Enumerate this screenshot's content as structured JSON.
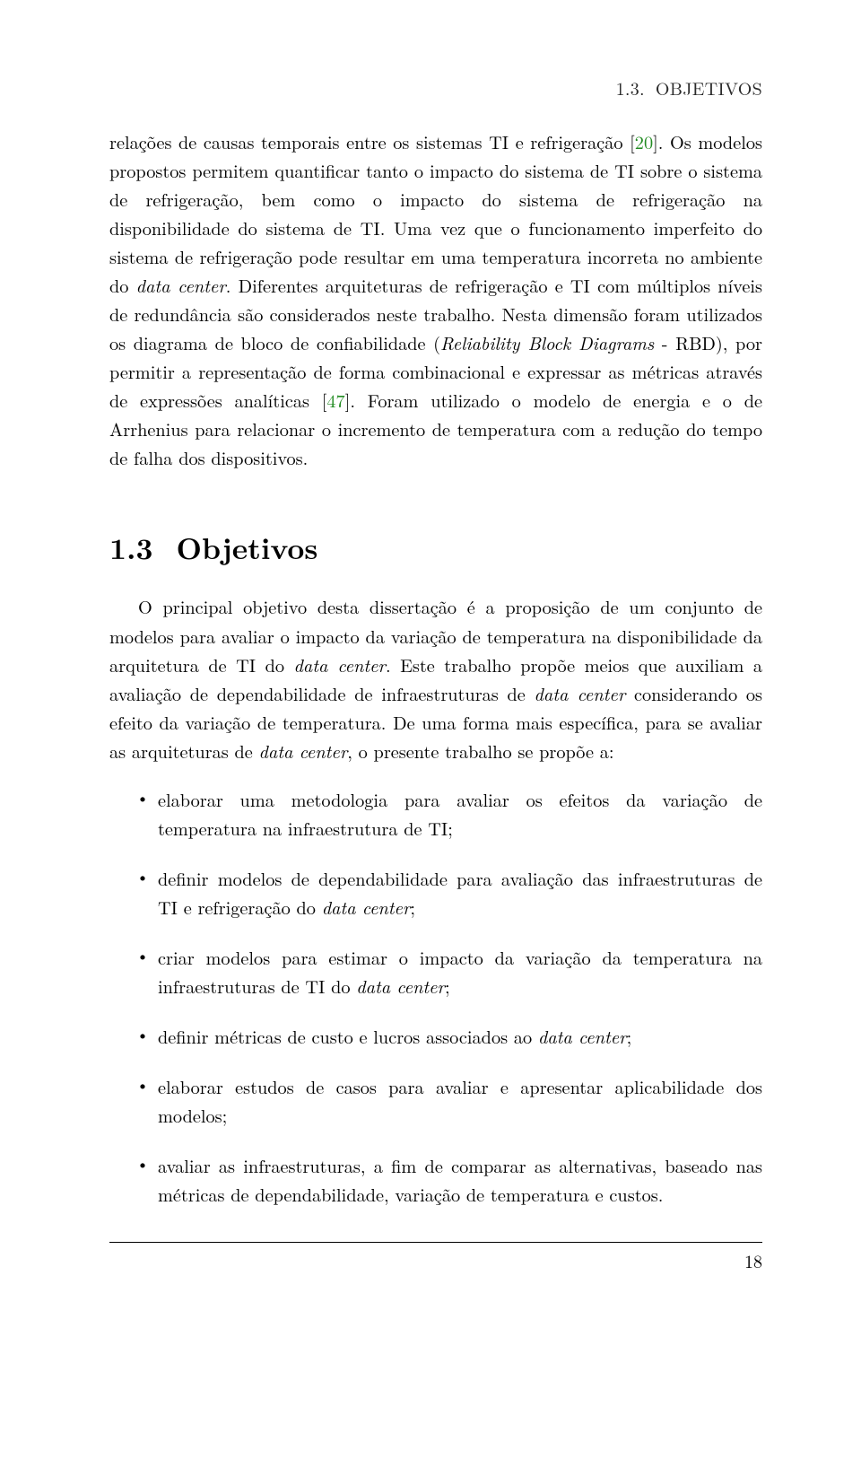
{
  "running_head": {
    "sec_num": "1.3.",
    "sec_title": "OBJETIVOS"
  },
  "para1_pre": "relações de causas temporais entre os sistemas TI e refrigeração [",
  "cite1": "20",
  "para1_mid": "]. Os modelos propostos permitem quantificar tanto o impacto do sistema de TI sobre o sistema de refrigeração, bem como o impacto do sistema de refrigeração na disponibilidade do sistema de TI. Uma vez que o funcionamento imperfeito do sistema de refrigeração pode resultar em uma temperatura incorreta no ambiente do ",
  "it_datacenter": "data center",
  "para1_mid2": ". Diferentes arquiteturas de refrigeração e TI com múltiplos níveis de redundância são considerados neste trabalho. Nesta dimensão foram utilizados os diagrama de bloco de confiabilidade (",
  "it_rbd": "Reliability Block Diagrams",
  "para1_mid3": " - RBD), por permitir a representação de forma combinacional e expressar as métricas através de expressões analíticas [",
  "cite2": "47",
  "para1_end": "]. Foram utilizado o modelo de energia e o de Arrhenius para relacionar o incremento de temperatura com a redução do tempo de falha dos dispositivos.",
  "section": {
    "num": "1.3",
    "title": "Objetivos"
  },
  "intro_a": "O principal objetivo desta dissertação é a proposição de um conjunto de modelos para avaliar o impacto da variação de temperatura na disponibilidade da arquitetura de TI do ",
  "intro_b": ". Este trabalho propõe meios que auxiliam a avaliação de dependabilidade de infraestruturas de ",
  "intro_c": " considerando os efeito da variação de temperatura. De uma forma mais específica, para se avaliar as arquiteturas de ",
  "intro_d": ", o presente trabalho se propõe a:",
  "bullets": {
    "b1": "elaborar uma metodologia para avaliar os efeitos da variação de temperatura na infraestrutura de TI;",
    "b2_a": "definir modelos de dependabilidade para avaliação das infraestruturas de TI e refrigeração do ",
    "b2_b": ";",
    "b3_a": "criar modelos para estimar o impacto da variação da temperatura na infraestruturas de TI do ",
    "b3_b": ";",
    "b4_a": "definir métricas de custo e lucros associados ao ",
    "b4_b": ";",
    "b5": "elaborar estudos de casos para avaliar e apresentar aplicabilidade dos modelos;",
    "b6": "avaliar as infraestruturas, a fim de comparar as alternativas, baseado nas métricas de dependabilidade, variação de temperatura e custos."
  },
  "page_number": "18"
}
